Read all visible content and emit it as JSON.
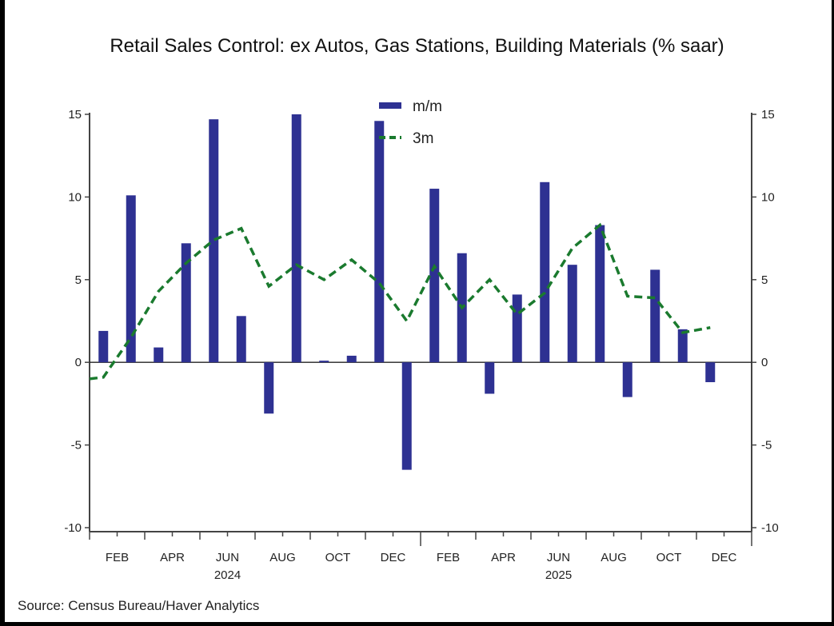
{
  "chart_data": {
    "type": "bar",
    "title": "Retail Sales Control: ex Autos, Gas Stations, Building Materials (% saar)",
    "source": "Source:  Census Bureau/Haver Analytics",
    "xlabel": "",
    "ylabel": "",
    "ylim": [
      -10,
      15
    ],
    "yticks": [
      15,
      10,
      5,
      0,
      -5,
      -10
    ],
    "ytick_labels": [
      "15",
      "10",
      "5",
      "0",
      "-5",
      "-10"
    ],
    "right_axis": true,
    "grid": false,
    "legend_position": "top-center",
    "x_months": [
      "JAN 2024",
      "FEB 2024",
      "MAR 2024",
      "APR 2024",
      "MAY 2024",
      "JUN 2024",
      "JUL 2024",
      "AUG 2024",
      "SEP 2024",
      "OCT 2024",
      "NOV 2024",
      "DEC 2024",
      "JAN 2025",
      "FEB 2025",
      "MAR 2025",
      "APR 2025",
      "MAY 2025",
      "JUN 2025",
      "JUL 2025",
      "AUG 2025",
      "SEP 2025",
      "OCT 2025",
      "NOV 2025",
      "DEC 2025"
    ],
    "x_tick_labels": [
      {
        "month_index": 1,
        "label": "FEB"
      },
      {
        "month_index": 3,
        "label": "APR"
      },
      {
        "month_index": 5,
        "label": "JUN"
      },
      {
        "month_index": 7,
        "label": "AUG"
      },
      {
        "month_index": 9,
        "label": "OCT"
      },
      {
        "month_index": 11,
        "label": "DEC"
      },
      {
        "month_index": 13,
        "label": "FEB"
      },
      {
        "month_index": 15,
        "label": "APR"
      },
      {
        "month_index": 17,
        "label": "JUN"
      },
      {
        "month_index": 19,
        "label": "AUG"
      },
      {
        "month_index": 21,
        "label": "OCT"
      },
      {
        "month_index": 23,
        "label": "DEC"
      }
    ],
    "year_labels": [
      {
        "month_index": 5,
        "label": "2024"
      },
      {
        "month_index": 17,
        "label": "2025"
      }
    ],
    "series": [
      {
        "name": "m/m",
        "kind": "bar",
        "color": "#2e3192",
        "values": [
          1.9,
          10.1,
          0.9,
          7.2,
          14.7,
          2.8,
          -3.1,
          15.0,
          0.1,
          0.4,
          14.6,
          -6.5,
          10.5,
          6.6,
          -1.9,
          4.1,
          10.9,
          5.9,
          8.3,
          -2.1,
          5.6,
          2.0,
          -1.2,
          null
        ]
      },
      {
        "name": "3m",
        "kind": "line-dashed",
        "color": "#1a7a2e",
        "start_value": -1.0,
        "values": [
          -0.9,
          1.5,
          4.3,
          6.0,
          7.4,
          8.1,
          4.6,
          5.9,
          5.0,
          6.2,
          4.8,
          2.5,
          5.8,
          3.3,
          5.0,
          2.9,
          4.2,
          6.9,
          8.3,
          4.0,
          3.9,
          1.8,
          2.1,
          null
        ]
      }
    ]
  }
}
